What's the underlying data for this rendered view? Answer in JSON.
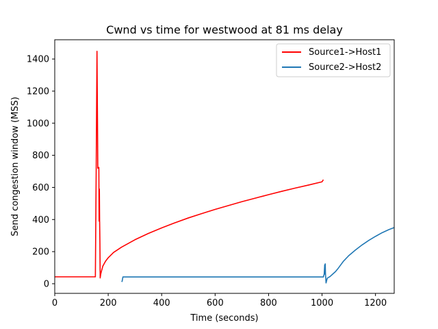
{
  "chart_data": {
    "type": "line",
    "title": "Cwnd vs time for westwood at 81 ms delay",
    "xlabel": "Time (seconds)",
    "ylabel": "Send congestion window (MSS)",
    "xlim": [
      0,
      1270
    ],
    "ylim": [
      -60,
      1520
    ],
    "xticks": [
      0,
      200,
      400,
      600,
      800,
      1000,
      1200
    ],
    "yticks": [
      0,
      200,
      400,
      600,
      800,
      1000,
      1200,
      1400
    ],
    "grid": false,
    "legend_position": "top-right",
    "series": [
      {
        "name": "Source1->Host1",
        "color": "#ff0000",
        "points": [
          [
            0,
            43
          ],
          [
            150,
            43
          ],
          [
            152,
            43
          ],
          [
            155,
            700
          ],
          [
            158,
            1448
          ],
          [
            160,
            1000
          ],
          [
            161,
            720
          ],
          [
            163,
            720
          ],
          [
            165,
            725
          ],
          [
            166,
            390
          ],
          [
            167,
            590
          ],
          [
            168,
            380
          ],
          [
            169,
            250
          ],
          [
            170,
            36
          ],
          [
            172,
            60
          ],
          [
            175,
            80
          ],
          [
            180,
            110
          ],
          [
            190,
            140
          ],
          [
            200,
            162
          ],
          [
            220,
            195
          ],
          [
            250,
            228
          ],
          [
            300,
            274
          ],
          [
            350,
            313
          ],
          [
            400,
            348
          ],
          [
            450,
            380
          ],
          [
            500,
            410
          ],
          [
            550,
            437
          ],
          [
            600,
            463
          ],
          [
            650,
            487
          ],
          [
            700,
            511
          ],
          [
            750,
            533
          ],
          [
            800,
            555
          ],
          [
            850,
            576
          ],
          [
            900,
            596
          ],
          [
            950,
            615
          ],
          [
            1000,
            635
          ],
          [
            1005,
            648
          ]
        ]
      },
      {
        "name": "Source2->Host2",
        "color": "#1f77b4",
        "points": [
          [
            250,
            12
          ],
          [
            252,
            15
          ],
          [
            255,
            42
          ],
          [
            1005,
            42
          ],
          [
            1008,
            60
          ],
          [
            1010,
            118
          ],
          [
            1011,
            60
          ],
          [
            1012,
            124
          ],
          [
            1013,
            58
          ],
          [
            1014,
            30
          ],
          [
            1015,
            5
          ],
          [
            1018,
            25
          ],
          [
            1020,
            35
          ],
          [
            1030,
            45
          ],
          [
            1040,
            60
          ],
          [
            1050,
            75
          ],
          [
            1060,
            95
          ],
          [
            1080,
            140
          ],
          [
            1100,
            175
          ],
          [
            1125,
            210
          ],
          [
            1150,
            242
          ],
          [
            1175,
            270
          ],
          [
            1200,
            295
          ],
          [
            1225,
            318
          ],
          [
            1250,
            337
          ],
          [
            1270,
            350
          ]
        ]
      }
    ]
  }
}
